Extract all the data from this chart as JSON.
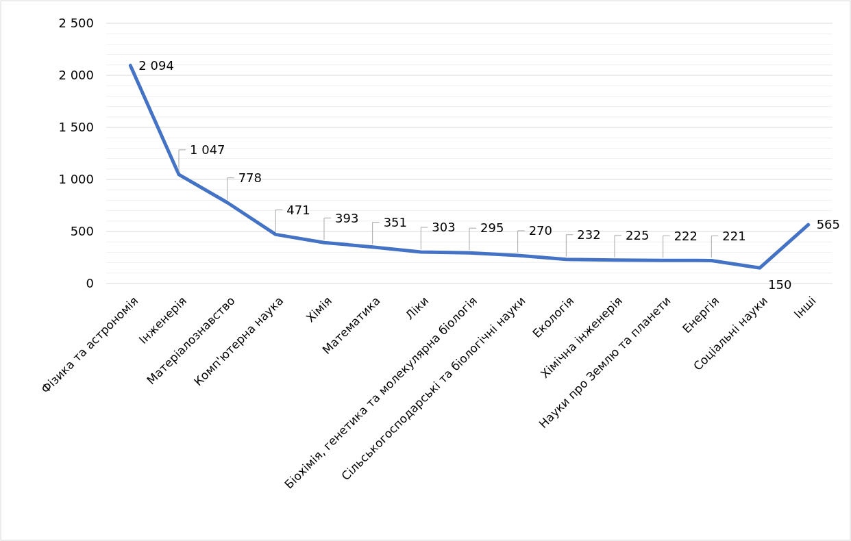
{
  "chart_data": {
    "type": "line",
    "categories": [
      "Фізика та астрономія",
      "Інженерія",
      "Матеріалознавство",
      "Комп'ютерна наука",
      "Хімія",
      "Математика",
      "Ліки",
      "Біохімія, генетика та молекулярна біологія",
      "Сільськогосподарські та біологічні науки",
      "Екологія",
      "Хімічна інженерія",
      "Науки про Землю та планети",
      "Енергія",
      "Соціальні науки",
      "Інші"
    ],
    "series": [
      {
        "color": "#4472c4",
        "values": [
          2094,
          1047,
          778,
          471,
          393,
          351,
          303,
          295,
          270,
          232,
          225,
          222,
          221,
          150,
          565
        ]
      }
    ],
    "ylim": [
      0,
      2500
    ],
    "yticks": [
      0,
      {
        "value": 100,
        "label": null
      },
      {
        "value": 200,
        "label": null
      },
      {
        "value": 300,
        "label": null
      },
      {
        "value": 400,
        "label": null
      },
      {
        "value": 500,
        "label": "500"
      },
      {
        "value": 600,
        "label": null
      },
      {
        "value": 700,
        "label": null
      },
      {
        "value": 800,
        "label": null
      },
      {
        "value": 900,
        "label": null
      },
      {
        "value": 1000,
        "label": "1 000"
      },
      {
        "value": 1100,
        "label": null
      },
      {
        "value": 1200,
        "label": null
      },
      {
        "value": 1300,
        "label": null
      },
      {
        "value": 1400,
        "label": null
      },
      {
        "value": 1500,
        "label": "1 500"
      },
      {
        "value": 1600,
        "label": null
      },
      {
        "value": 1700,
        "label": null
      },
      {
        "value": 1800,
        "label": null
      },
      {
        "value": 1900,
        "label": null
      },
      {
        "value": 2000,
        "label": "2 000"
      },
      {
        "value": 2100,
        "label": null
      },
      {
        "value": 2200,
        "label": null
      },
      {
        "value": 2300,
        "label": null
      },
      {
        "value": 2400,
        "label": null
      },
      {
        "value": 2500,
        "label": "2 500"
      }
    ],
    "value_labels": [
      "2 094",
      "1 047",
      "778",
      "471",
      "393",
      "351",
      "303",
      "295",
      "270",
      "232",
      "225",
      "222",
      "221",
      "150",
      "565"
    ],
    "grid": "y",
    "marker": "none",
    "line_style": "solid"
  }
}
